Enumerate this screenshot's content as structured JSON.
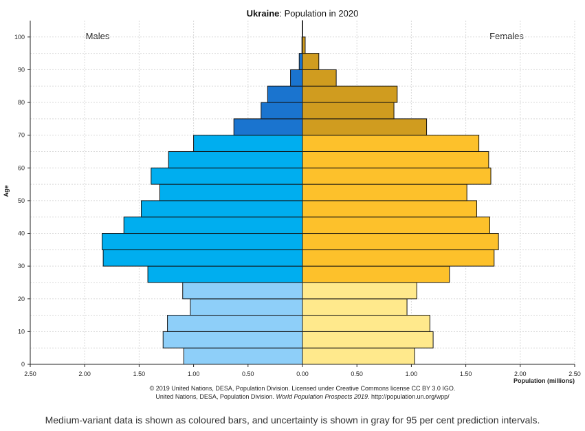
{
  "chart_data": {
    "type": "bar",
    "title_country": "Ukraine",
    "title_rest": ": Population in 2020",
    "left_label": "Males",
    "right_label": "Females",
    "ylabel": "Age",
    "xlabel": "Population (millions)",
    "xlim": [
      -2.5,
      2.5
    ],
    "ylim": [
      0,
      105
    ],
    "x_ticks": [
      -2.5,
      -2.0,
      -1.5,
      -1.0,
      -0.5,
      0,
      0.5,
      1.0,
      1.5,
      2.0,
      2.5
    ],
    "x_tick_labels": [
      "2.50",
      "2.00",
      "1.50",
      "1.00",
      "0.50",
      "0.00",
      "0.50",
      "1.00",
      "1.50",
      "2.00",
      "2.50"
    ],
    "y_ticks": [
      0,
      10,
      20,
      30,
      40,
      50,
      60,
      70,
      80,
      90,
      100
    ],
    "grid": true,
    "age_groups": [
      "0-4",
      "5-9",
      "10-14",
      "15-19",
      "20-24",
      "25-29",
      "30-34",
      "35-39",
      "40-44",
      "45-49",
      "50-54",
      "55-59",
      "60-64",
      "65-69",
      "70-74",
      "75-79",
      "80-84",
      "85-89",
      "90-94",
      "95-99",
      "100+"
    ],
    "males": [
      1.09,
      1.28,
      1.24,
      1.03,
      1.1,
      1.42,
      1.83,
      1.84,
      1.64,
      1.48,
      1.31,
      1.39,
      1.23,
      1.0,
      0.63,
      0.38,
      0.32,
      0.11,
      0.03,
      0.005,
      0.001
    ],
    "females": [
      1.03,
      1.2,
      1.17,
      0.96,
      1.05,
      1.35,
      1.76,
      1.8,
      1.72,
      1.6,
      1.51,
      1.73,
      1.71,
      1.62,
      1.14,
      0.84,
      0.87,
      0.31,
      0.15,
      0.025,
      0.003
    ],
    "colors": {
      "male_young": "#8ecff9",
      "male_adult": "#00aeef",
      "male_old": "#1a74cf",
      "female_young": "#ffe98c",
      "female_adult": "#fdc12b",
      "female_old": "#d09c1f",
      "outline": "#111111"
    }
  },
  "credit_line1": "© 2019 United Nations, DESA, Population Division. Licensed under Creative Commons license CC BY 3.0 IGO.",
  "credit_line2_prefix": "United Nations, DESA, Population Division. ",
  "credit_line2_italic": "World Population Prospects 2019",
  "credit_line2_suffix": ". http://population.un.org/wpp/",
  "caption": "Medium-variant data is shown as coloured bars, and uncertainty is shown in gray for 95 per cent prediction intervals."
}
